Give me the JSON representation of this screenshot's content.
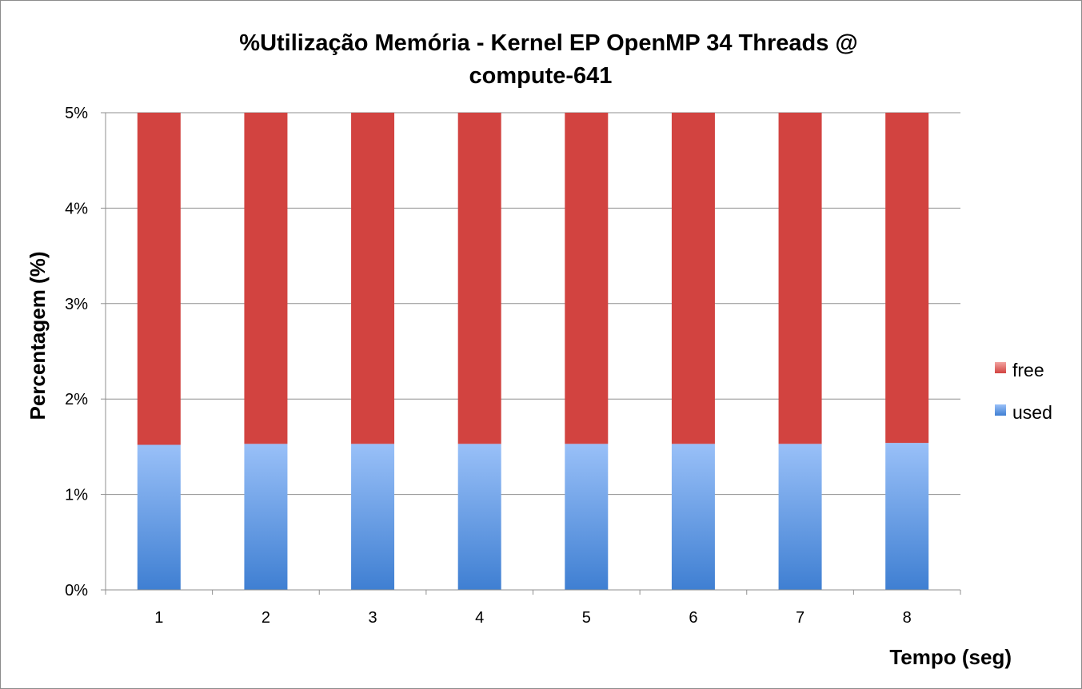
{
  "chart_data": {
    "type": "bar",
    "stacked": true,
    "title_lines": [
      "%Utilização Memória - Kernel EP OpenMP 34 Threads  @",
      "compute-641"
    ],
    "xlabel": "Tempo (seg)",
    "ylabel": "Percentagem (%)",
    "categories": [
      "1",
      "2",
      "3",
      "4",
      "5",
      "6",
      "7",
      "8"
    ],
    "series": [
      {
        "name": "used",
        "values": [
          1.52,
          1.53,
          1.53,
          1.53,
          1.53,
          1.53,
          1.53,
          1.54
        ],
        "color": "#4a86d6"
      },
      {
        "name": "free",
        "values": [
          3.48,
          3.47,
          3.47,
          3.47,
          3.47,
          3.47,
          3.47,
          3.46
        ],
        "color": "#d24340"
      }
    ],
    "ylim": [
      0,
      5
    ],
    "yticks": [
      0,
      1,
      2,
      3,
      4,
      5
    ],
    "ytick_labels": [
      "0%",
      "1%",
      "2%",
      "3%",
      "4%",
      "5%"
    ],
    "grid": true,
    "legend_position": "right"
  }
}
